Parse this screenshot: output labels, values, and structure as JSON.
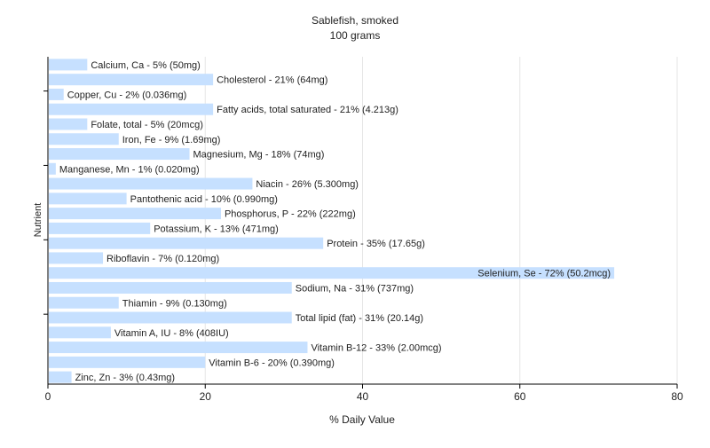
{
  "chart_data": {
    "type": "bar",
    "orientation": "horizontal",
    "title": "Sablefish, smoked",
    "subtitle": "100 grams",
    "xlabel": "% Daily Value",
    "ylabel": "Nutrient",
    "xlim": [
      0,
      80
    ],
    "xticks": [
      "0",
      "20",
      "40",
      "60",
      "80"
    ],
    "grid": true,
    "legend": "none",
    "bar_color": "#c6e0ff",
    "categories": [
      "Calcium, Ca",
      "Cholesterol",
      "Copper, Cu",
      "Fatty acids, total saturated",
      "Folate, total",
      "Iron, Fe",
      "Magnesium, Mg",
      "Manganese, Mn",
      "Niacin",
      "Pantothenic acid",
      "Phosphorus, P",
      "Potassium, K",
      "Protein",
      "Riboflavin",
      "Selenium, Se",
      "Sodium, Na",
      "Thiamin",
      "Total lipid (fat)",
      "Vitamin A, IU",
      "Vitamin B-12",
      "Vitamin B-6",
      "Zinc, Zn"
    ],
    "values": [
      5,
      21,
      2,
      21,
      5,
      9,
      18,
      1,
      26,
      10,
      22,
      13,
      35,
      7,
      72,
      31,
      9,
      31,
      8,
      33,
      20,
      3
    ],
    "labels": [
      "Calcium, Ca - 5% (50mg)",
      "Cholesterol - 21% (64mg)",
      "Copper, Cu - 2% (0.036mg)",
      "Fatty acids, total saturated - 21% (4.213g)",
      "Folate, total - 5% (20mcg)",
      "Iron, Fe - 9% (1.69mg)",
      "Magnesium, Mg - 18% (74mg)",
      "Manganese, Mn - 1% (0.020mg)",
      "Niacin - 26% (5.300mg)",
      "Pantothenic acid - 10% (0.990mg)",
      "Phosphorus, P - 22% (222mg)",
      "Potassium, K - 13% (471mg)",
      "Protein - 35% (17.65g)",
      "Riboflavin - 7% (0.120mg)",
      "Selenium, Se - 72% (50.2mcg)",
      "Sodium, Na - 31% (737mg)",
      "Thiamin - 9% (0.130mg)",
      "Total lipid (fat) - 31% (20.14g)",
      "Vitamin A, IU - 8% (408IU)",
      "Vitamin B-12 - 33% (2.00mcg)",
      "Vitamin B-6 - 20% (0.390mg)",
      "Zinc, Zn - 3% (0.43mg)"
    ]
  }
}
